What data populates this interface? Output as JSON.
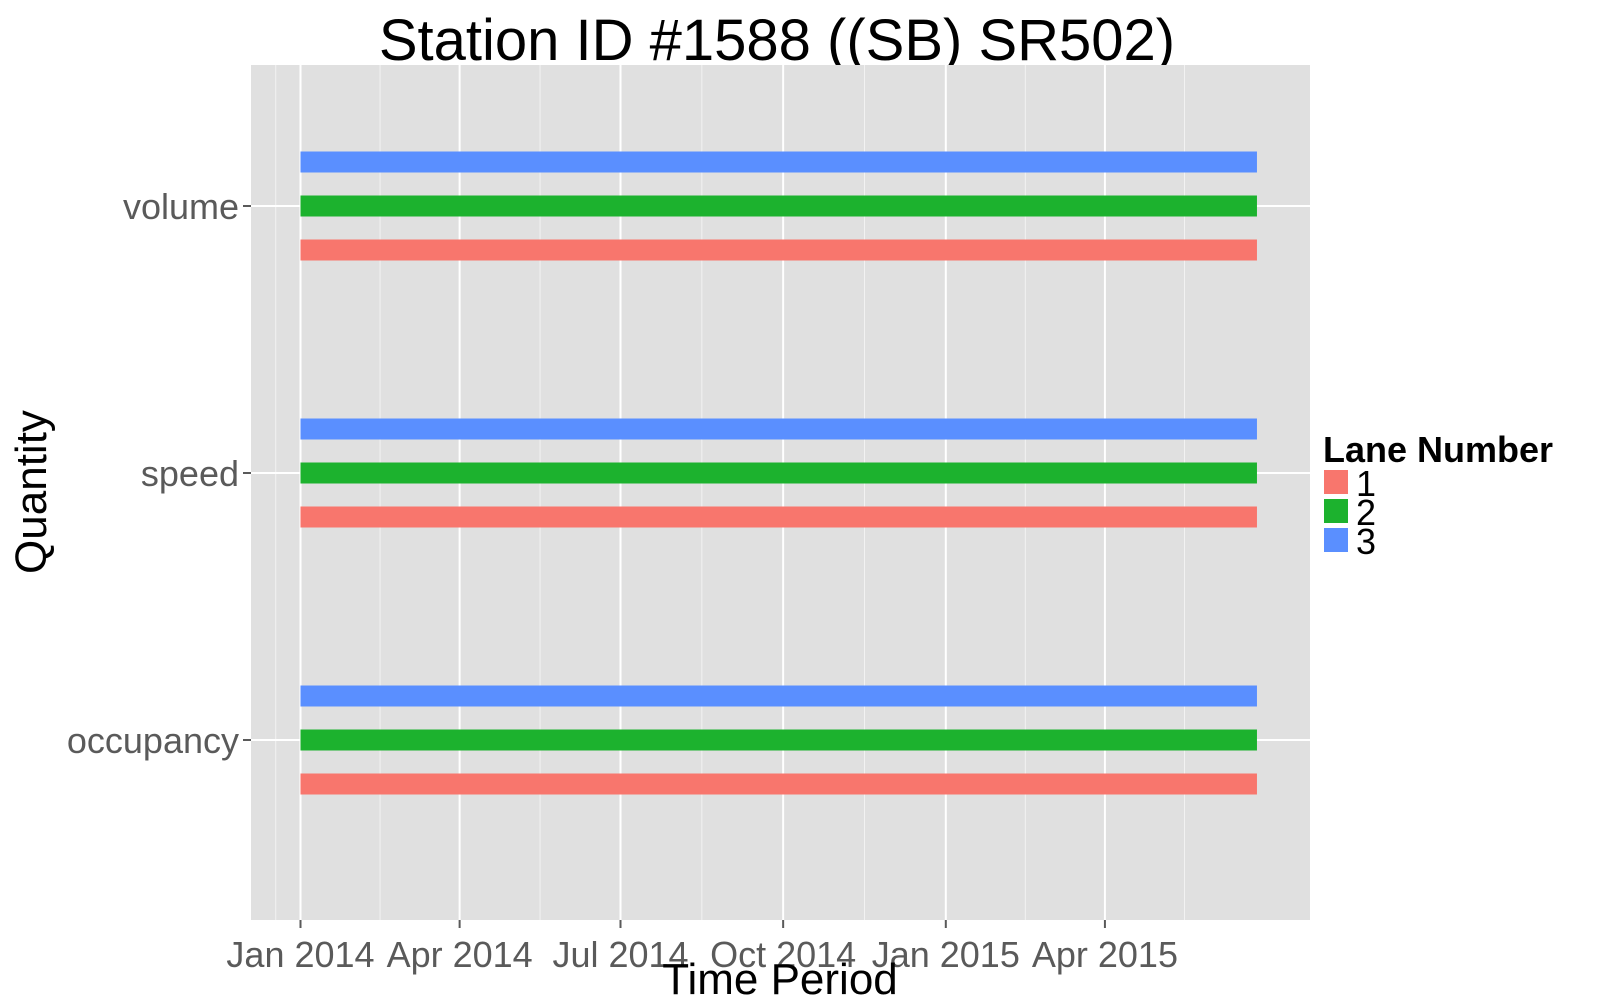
{
  "chart_data": {
    "type": "bar",
    "title": "Station ID #1588 ((SB) SR502)",
    "xlabel": "Time Period",
    "ylabel": "Quantity",
    "x_ticks": [
      "Jan 2014",
      "Apr 2014",
      "Jul 2014",
      "Oct 2014",
      "Jan 2015",
      "Apr 2015"
    ],
    "categories": [
      "occupancy",
      "speed",
      "volume"
    ],
    "xlim": [
      "2013-12-04",
      "2015-07-26"
    ],
    "grid": true,
    "legend": {
      "title": "Lane Number",
      "position": "right"
    },
    "series": [
      {
        "name": "1",
        "color": "#F8766D",
        "segments": [
          {
            "quantity": "occupancy",
            "start": "2014-01-01",
            "end": "2015-06-26"
          },
          {
            "quantity": "speed",
            "start": "2014-01-01",
            "end": "2015-06-26"
          },
          {
            "quantity": "volume",
            "start": "2014-01-01",
            "end": "2015-06-26"
          }
        ]
      },
      {
        "name": "2",
        "color": "#1CB22E",
        "segments": [
          {
            "quantity": "occupancy",
            "start": "2014-01-01",
            "end": "2015-06-26"
          },
          {
            "quantity": "speed",
            "start": "2014-01-01",
            "end": "2015-06-26"
          },
          {
            "quantity": "volume",
            "start": "2014-01-01",
            "end": "2015-06-26"
          }
        ]
      },
      {
        "name": "3",
        "color": "#5A8FFF",
        "segments": [
          {
            "quantity": "occupancy",
            "start": "2014-01-01",
            "end": "2015-06-26"
          },
          {
            "quantity": "speed",
            "start": "2014-01-01",
            "end": "2015-06-26"
          },
          {
            "quantity": "volume",
            "start": "2014-01-01",
            "end": "2015-06-26"
          }
        ]
      }
    ]
  }
}
